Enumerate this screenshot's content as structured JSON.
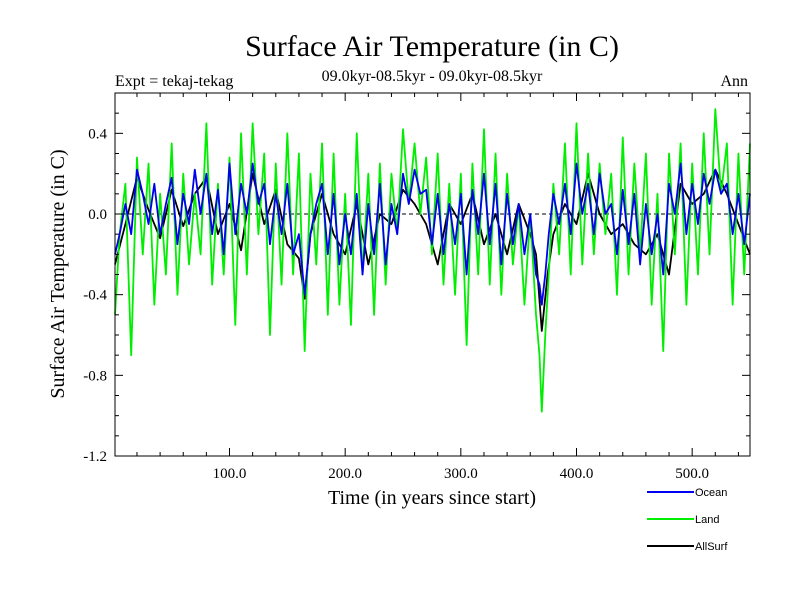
{
  "chart_data": {
    "type": "line",
    "title": "Surface Air Temperature (in C)",
    "subtitle_left": "Expt = tekaj-tekag",
    "subtitle_center": "09.0kyr-08.5kyr - 09.0kyr-08.5kyr",
    "subtitle_right": "Ann",
    "xlabel": "Time (in years since start)",
    "ylabel": "Surface Air Temperature (in C)",
    "xlim": [
      1,
      550
    ],
    "ylim": [
      -1.2,
      0.6
    ],
    "x_ticks": [
      100,
      200,
      300,
      400,
      500
    ],
    "x_tick_labels": [
      "100.0",
      "200.0",
      "300.0",
      "400.0",
      "500.0"
    ],
    "y_ticks": [
      0.4,
      0.0,
      -0.4,
      -0.8,
      -1.2
    ],
    "y_tick_labels": [
      "0.4",
      "0.0",
      "-0.4",
      "-0.8",
      "-1.2"
    ],
    "zero_line": 0.0,
    "legend_position": "bottom-right",
    "series": [
      {
        "name": "AllSurf",
        "color": "#000000",
        "x": [
          1,
          10,
          20,
          30,
          40,
          50,
          60,
          70,
          80,
          90,
          100,
          110,
          120,
          130,
          140,
          150,
          160,
          165,
          170,
          180,
          190,
          200,
          210,
          220,
          230,
          240,
          250,
          260,
          270,
          280,
          290,
          300,
          310,
          320,
          330,
          340,
          350,
          360,
          365,
          370,
          375,
          380,
          390,
          400,
          410,
          420,
          430,
          440,
          450,
          460,
          470,
          480,
          490,
          500,
          510,
          520,
          530,
          540,
          550
        ],
        "values": [
          -0.25,
          -0.05,
          0.18,
          0.02,
          -0.12,
          0.12,
          -0.06,
          0.1,
          0.18,
          -0.1,
          0.05,
          -0.18,
          0.2,
          -0.05,
          0.12,
          -0.15,
          -0.22,
          -0.42,
          -0.1,
          0.1,
          -0.1,
          -0.2,
          0.05,
          -0.25,
          0.0,
          -0.05,
          0.12,
          0.05,
          -0.05,
          -0.25,
          0.05,
          -0.05,
          0.1,
          -0.15,
          0.0,
          -0.2,
          0.05,
          -0.1,
          -0.2,
          -0.58,
          -0.3,
          -0.1,
          0.05,
          -0.05,
          0.2,
          0.0,
          -0.1,
          -0.05,
          -0.15,
          -0.2,
          -0.1,
          -0.3,
          0.15,
          0.05,
          0.1,
          0.22,
          0.1,
          -0.05,
          -0.2
        ]
      },
      {
        "name": "Land",
        "color": "#00ee00",
        "x": [
          1,
          5,
          10,
          15,
          20,
          25,
          30,
          35,
          40,
          45,
          50,
          55,
          60,
          65,
          70,
          75,
          80,
          85,
          90,
          95,
          100,
          105,
          110,
          115,
          120,
          125,
          130,
          135,
          140,
          145,
          150,
          155,
          160,
          165,
          170,
          175,
          180,
          185,
          190,
          195,
          200,
          205,
          210,
          215,
          220,
          225,
          230,
          235,
          240,
          245,
          250,
          255,
          260,
          265,
          270,
          275,
          280,
          285,
          290,
          295,
          300,
          305,
          310,
          315,
          320,
          325,
          330,
          335,
          340,
          345,
          350,
          355,
          360,
          365,
          368,
          370,
          373,
          376,
          380,
          385,
          390,
          395,
          400,
          405,
          410,
          415,
          420,
          425,
          430,
          435,
          440,
          445,
          450,
          455,
          460,
          465,
          470,
          475,
          480,
          485,
          490,
          495,
          500,
          505,
          510,
          515,
          520,
          525,
          530,
          535,
          540,
          545,
          550
        ],
        "values": [
          -0.5,
          -0.1,
          0.15,
          -0.7,
          0.28,
          -0.2,
          0.25,
          -0.45,
          0.1,
          -0.3,
          0.35,
          -0.4,
          0.2,
          -0.25,
          0.1,
          -0.2,
          0.45,
          -0.35,
          0.15,
          -0.3,
          0.28,
          -0.55,
          0.4,
          -0.3,
          0.45,
          -0.1,
          0.3,
          -0.6,
          0.25,
          -0.35,
          0.4,
          -0.3,
          0.3,
          -0.68,
          0.2,
          -0.25,
          0.35,
          -0.5,
          0.3,
          -0.45,
          0.1,
          -0.55,
          0.4,
          -0.3,
          0.2,
          -0.5,
          0.25,
          -0.35,
          0.2,
          -0.1,
          0.42,
          0.05,
          0.35,
          0.0,
          0.28,
          -0.2,
          0.3,
          -0.35,
          0.15,
          -0.4,
          0.2,
          -0.65,
          0.25,
          -0.3,
          0.42,
          -0.35,
          0.3,
          -0.4,
          0.2,
          -0.25,
          0.05,
          -0.45,
          0.0,
          -0.5,
          -0.7,
          -0.98,
          -0.6,
          -0.3,
          0.15,
          -0.2,
          0.35,
          -0.3,
          0.45,
          -0.25,
          0.3,
          -0.2,
          0.25,
          -0.1,
          0.2,
          -0.4,
          0.38,
          -0.3,
          0.25,
          -0.2,
          0.3,
          -0.45,
          0.1,
          -0.68,
          0.3,
          -0.2,
          0.35,
          -0.45,
          0.25,
          -0.3,
          0.4,
          -0.2,
          0.52,
          0.1,
          0.35,
          -0.45,
          0.3,
          -0.3,
          0.35
        ]
      },
      {
        "name": "Ocean",
        "color": "#0000ee",
        "x": [
          1,
          5,
          10,
          15,
          20,
          25,
          30,
          35,
          40,
          45,
          50,
          55,
          60,
          65,
          70,
          75,
          80,
          85,
          90,
          95,
          100,
          105,
          110,
          115,
          120,
          125,
          130,
          135,
          140,
          145,
          150,
          155,
          160,
          165,
          170,
          175,
          180,
          185,
          190,
          195,
          200,
          205,
          210,
          215,
          220,
          225,
          230,
          235,
          240,
          245,
          250,
          255,
          260,
          265,
          270,
          275,
          280,
          285,
          290,
          295,
          300,
          305,
          310,
          315,
          320,
          325,
          330,
          335,
          340,
          345,
          350,
          355,
          360,
          365,
          368,
          370,
          373,
          376,
          380,
          385,
          390,
          395,
          400,
          405,
          410,
          415,
          420,
          425,
          430,
          435,
          440,
          445,
          450,
          455,
          460,
          465,
          470,
          475,
          480,
          485,
          490,
          495,
          500,
          505,
          510,
          515,
          520,
          525,
          530,
          535,
          540,
          545,
          550
        ],
        "values": [
          -0.2,
          -0.1,
          0.05,
          -0.1,
          0.22,
          0.1,
          -0.05,
          0.15,
          -0.1,
          0.05,
          0.18,
          -0.15,
          0.1,
          -0.05,
          0.22,
          0.0,
          0.2,
          -0.1,
          0.12,
          -0.2,
          0.25,
          -0.1,
          0.15,
          0.0,
          0.25,
          0.05,
          0.15,
          -0.15,
          0.1,
          -0.1,
          0.15,
          -0.2,
          -0.1,
          -0.4,
          -0.1,
          0.05,
          0.15,
          -0.2,
          0.1,
          -0.25,
          0.0,
          -0.2,
          0.1,
          -0.3,
          0.05,
          -0.2,
          0.15,
          -0.25,
          0.05,
          -0.1,
          0.2,
          0.05,
          0.22,
          0.1,
          0.12,
          -0.15,
          0.1,
          -0.2,
          0.05,
          -0.15,
          0.1,
          -0.3,
          0.12,
          -0.1,
          0.2,
          -0.15,
          0.15,
          -0.25,
          0.1,
          -0.15,
          0.05,
          -0.2,
          0.0,
          -0.3,
          -0.35,
          -0.45,
          -0.3,
          -0.1,
          0.1,
          -0.05,
          0.15,
          -0.1,
          0.25,
          0.0,
          0.15,
          -0.1,
          0.2,
          0.0,
          0.05,
          -0.2,
          0.12,
          -0.15,
          0.1,
          -0.25,
          0.05,
          -0.2,
          0.0,
          -0.3,
          0.15,
          0.0,
          0.25,
          -0.1,
          0.15,
          -0.05,
          0.2,
          0.05,
          0.22,
          0.1,
          0.15,
          -0.1,
          0.1,
          -0.15,
          0.1
        ]
      }
    ]
  }
}
